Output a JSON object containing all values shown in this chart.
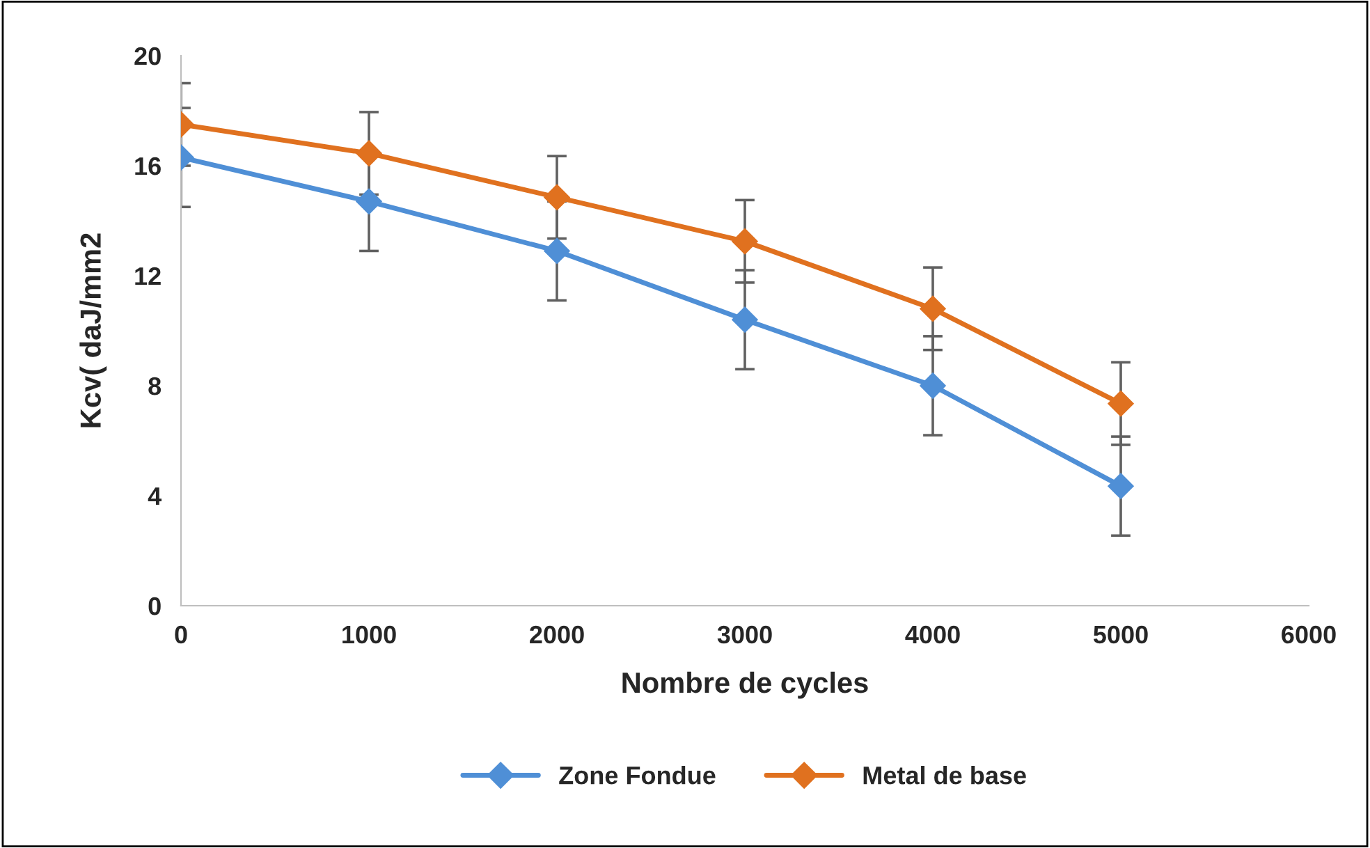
{
  "chart_data": {
    "type": "line",
    "xlabel": "Nombre de cycles",
    "ylabel": "Kcv( daJ/mm2",
    "x": [
      0,
      1000,
      2000,
      3000,
      4000,
      5000
    ],
    "series": [
      {
        "name": "Zone Fondue",
        "color": "#4f8fd6",
        "values": [
          16.3,
          14.7,
          12.9,
          10.4,
          8.0,
          4.35
        ],
        "errors": [
          1.8,
          1.8,
          1.8,
          1.8,
          1.8,
          1.8
        ]
      },
      {
        "name": "Metal de base",
        "color": "#e0711f",
        "values": [
          17.5,
          16.45,
          14.85,
          13.25,
          10.8,
          7.35
        ],
        "errors": [
          1.5,
          1.5,
          1.5,
          1.5,
          1.5,
          1.5
        ]
      }
    ],
    "xlim": [
      0,
      6000
    ],
    "xticks": [
      0,
      1000,
      2000,
      3000,
      4000,
      5000,
      6000
    ],
    "ylim": [
      0,
      20
    ],
    "yticks": [
      0,
      4,
      8,
      12,
      16,
      20
    ],
    "marker": "diamond",
    "grid": false,
    "legend": "bottom"
  }
}
